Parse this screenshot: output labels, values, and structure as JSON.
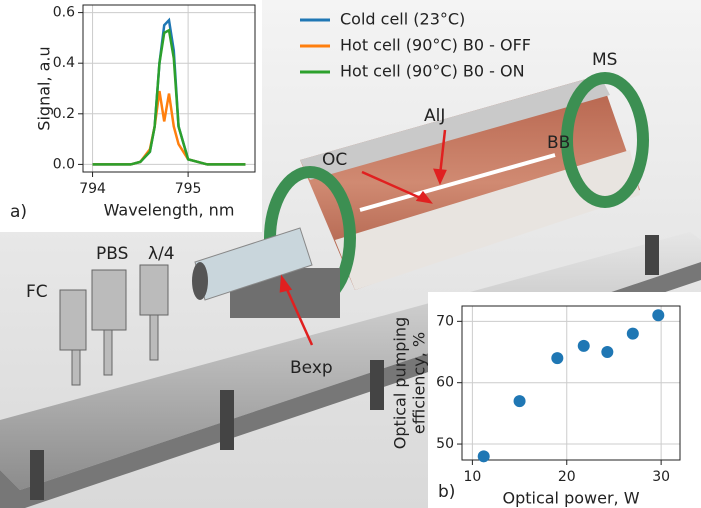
{
  "chart_data": [
    {
      "type": "line",
      "panel_label": "a)",
      "xlabel": "Wavelength, nm",
      "ylabel": "Signal, a.u",
      "x": [
        794.0,
        794.2,
        794.4,
        794.5,
        794.6,
        794.65,
        794.7,
        794.75,
        794.8,
        794.85,
        794.9,
        795.0,
        795.2,
        795.4,
        795.6
      ],
      "series": [
        {
          "name": "Cold cell (23°C)",
          "color": "#1f77b4",
          "values": [
            0,
            0,
            0,
            0.01,
            0.05,
            0.15,
            0.4,
            0.55,
            0.57,
            0.45,
            0.15,
            0.02,
            0,
            0,
            0
          ]
        },
        {
          "name": "Hot cell (90°C) B0 - OFF",
          "color": "#ff7f0e",
          "values": [
            0,
            0,
            0,
            0.01,
            0.06,
            0.15,
            0.29,
            0.17,
            0.28,
            0.15,
            0.08,
            0.02,
            0,
            0,
            0
          ]
        },
        {
          "name": "Hot cell (90°C) B0 - ON",
          "color": "#2ca02c",
          "values": [
            0,
            0,
            0,
            0.01,
            0.05,
            0.15,
            0.4,
            0.52,
            0.53,
            0.42,
            0.15,
            0.02,
            0,
            0,
            0
          ]
        }
      ],
      "xlim": [
        793.9,
        795.7
      ],
      "ylim": [
        -0.03,
        0.63
      ],
      "xticks": [
        794,
        795
      ],
      "yticks": [
        {
          "value": 0,
          "label": "0.0"
        },
        0.2,
        0.4,
        0.6
      ],
      "grid": true
    },
    {
      "type": "scatter",
      "panel_label": "b)",
      "xlabel": "Optical power, W",
      "ylabel": [
        "Optical pumping",
        "efficiency, %"
      ],
      "color": "#1f77b4",
      "x": [
        11.2,
        15,
        19,
        21.8,
        24.3,
        27,
        29.7
      ],
      "values": [
        48,
        57,
        64,
        66,
        65,
        68,
        71
      ],
      "xlim": [
        8.9,
        32
      ],
      "ylim": [
        47.4,
        72.5
      ],
      "xticks": [
        10,
        20,
        30
      ],
      "yticks": [
        50,
        60,
        70
      ],
      "grid": true
    }
  ],
  "labels": {
    "fc": "FC",
    "pbs": "PBS",
    "qwp": "λ/4",
    "bexp": "Bexp",
    "oc": "OC",
    "alj": "AlJ",
    "bb": "BB",
    "ms": "MS"
  }
}
